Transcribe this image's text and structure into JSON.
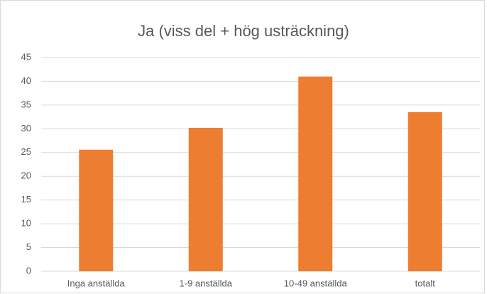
{
  "chart_data": {
    "type": "bar",
    "title": "Ja (viss del + hög usträckning)",
    "categories": [
      "Inga anställda",
      "1-9 anställda",
      "10-49 anställda",
      "totalt"
    ],
    "values": [
      25.6,
      30.2,
      41,
      33.5
    ],
    "color": "#ed7d31",
    "ylim": [
      0,
      45
    ],
    "yticks": [
      0,
      5,
      10,
      15,
      20,
      25,
      30,
      35,
      40,
      45
    ],
    "grid": true
  }
}
